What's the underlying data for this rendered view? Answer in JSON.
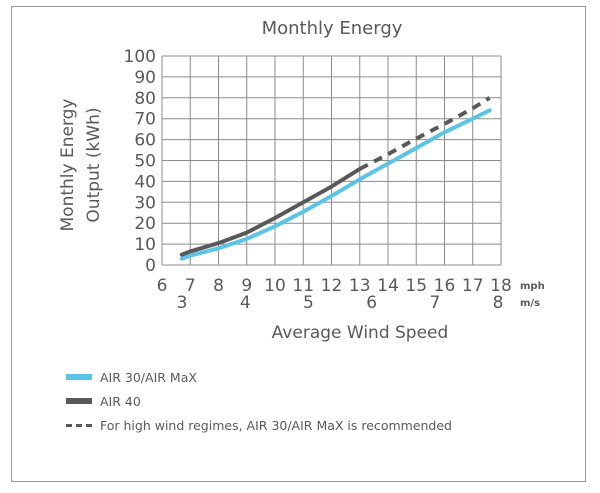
{
  "chart_data": {
    "type": "line",
    "title": "Monthly Energy",
    "xlabel": "Average Wind Speed",
    "ylabel": [
      "Monthly Energy",
      "Output (kWh)"
    ],
    "x_ticks_mph": [
      "6",
      "7",
      "8",
      "9",
      "10",
      "11",
      "12",
      "13",
      "14",
      "15",
      "16",
      "17",
      "18"
    ],
    "x_ticks_ms": [
      "3",
      "4",
      "5",
      "6",
      "7",
      "8"
    ],
    "x_unit_mph": "mph",
    "x_unit_ms": "m/s",
    "y_ticks": [
      "0",
      "10",
      "20",
      "30",
      "40",
      "50",
      "60",
      "70",
      "80",
      "90",
      "100"
    ],
    "xlim": [
      6,
      18
    ],
    "ylim": [
      0,
      100
    ],
    "grid": true,
    "series": [
      {
        "name": "AIR 30/AIR MaX",
        "color": "#5bc4e6",
        "style": "solid",
        "x": [
          6.7,
          7,
          8,
          9,
          10,
          11,
          12,
          13,
          14,
          15,
          16,
          17,
          17.6
        ],
        "y": [
          3,
          4.5,
          8,
          12.5,
          18.5,
          25.5,
          33,
          41,
          48.5,
          56,
          63.5,
          70,
          74
        ]
      },
      {
        "name": "AIR 40",
        "color": "#595959",
        "style": "solid",
        "x": [
          6.7,
          7,
          8,
          9,
          10,
          11,
          12,
          13
        ],
        "y": [
          5,
          6.5,
          10.5,
          15.5,
          22.5,
          30,
          37.5,
          46
        ]
      },
      {
        "name": "For high wind regimes, AIR 30/AIR MaX is recommended",
        "color": "#595959",
        "style": "dashed",
        "x": [
          13,
          14,
          15,
          16,
          17,
          17.6
        ],
        "y": [
          46,
          53,
          60.5,
          67.5,
          75,
          80
        ]
      }
    ],
    "legend_position": "bottom-left"
  }
}
